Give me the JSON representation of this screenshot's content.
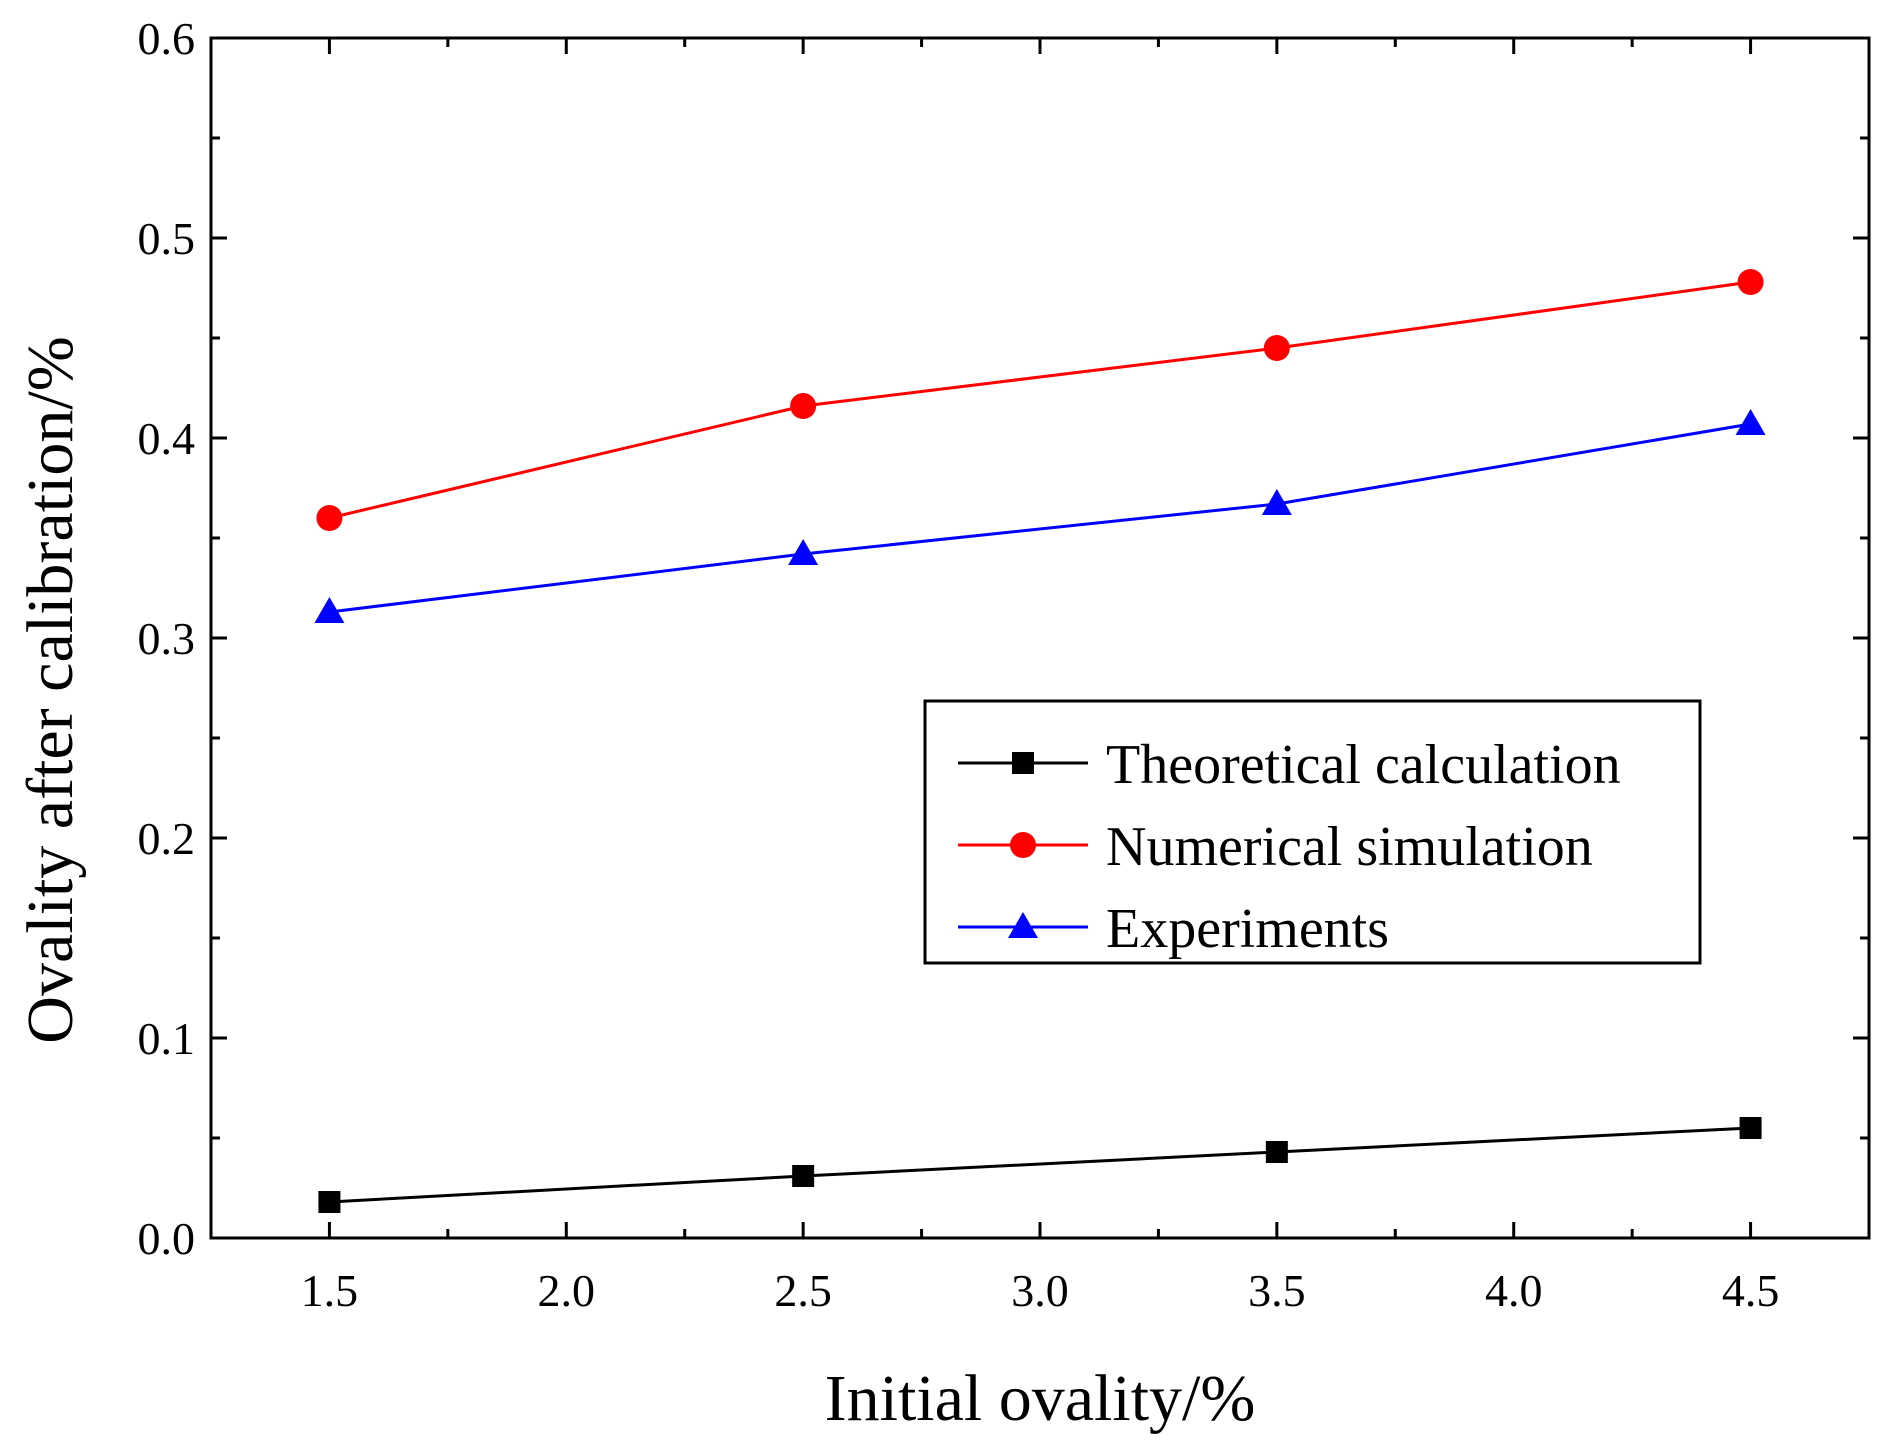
{
  "chart_data": {
    "type": "line",
    "xlabel": "Initial ovality/%",
    "ylabel": "Ovality after calibration/%",
    "xlim": [
      1.25,
      4.75
    ],
    "ylim": [
      0.0,
      0.6
    ],
    "xticks": [
      1.5,
      2.0,
      2.5,
      3.0,
      3.5,
      4.0,
      4.5
    ],
    "xtick_labels": [
      "1.5",
      "2.0",
      "2.5",
      "3.0",
      "3.5",
      "4.0",
      "4.5"
    ],
    "yticks": [
      0.0,
      0.1,
      0.2,
      0.3,
      0.4,
      0.5,
      0.6
    ],
    "ytick_labels": [
      "0.0",
      "0.1",
      "0.2",
      "0.3",
      "0.4",
      "0.5",
      "0.6"
    ],
    "grid": false,
    "legend_position": "center-right",
    "x": [
      1.5,
      2.5,
      3.5,
      4.5
    ],
    "series": [
      {
        "name": "Theoretical calculation",
        "values": [
          0.018,
          0.031,
          0.043,
          0.055
        ],
        "color": "#000000",
        "marker": "square"
      },
      {
        "name": "Numerical simulation",
        "values": [
          0.36,
          0.416,
          0.445,
          0.478
        ],
        "color": "#ff0000",
        "marker": "circle"
      },
      {
        "name": "Experiments",
        "values": [
          0.313,
          0.342,
          0.367,
          0.407
        ],
        "color": "#0000ff",
        "marker": "triangle"
      }
    ]
  }
}
